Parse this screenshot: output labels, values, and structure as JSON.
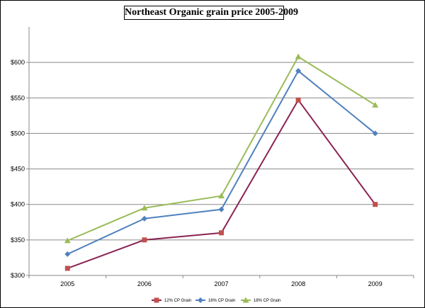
{
  "chart_data": {
    "type": "line",
    "title": "Northeast Organic grain price 2005-2009",
    "xlabel": "",
    "ylabel": "",
    "categories": [
      "2005",
      "2006",
      "2007",
      "2008",
      "2009"
    ],
    "ylim": [
      300,
      650
    ],
    "yticks": [
      300,
      350,
      400,
      450,
      500,
      550,
      600
    ],
    "ytick_labels": [
      "$300",
      "$350",
      "$400",
      "$450",
      "$500",
      "$550",
      "$600"
    ],
    "grid": true,
    "legend_position": "bottom",
    "series": [
      {
        "name": "12% CP Grain",
        "values": [
          310,
          350,
          360,
          547,
          400
        ],
        "line_color": "#8B2252",
        "marker_color": "#C0504D",
        "marker": "square"
      },
      {
        "name": "16% CP Grain",
        "values": [
          330,
          380,
          393,
          588,
          500
        ],
        "line_color": "#4F81BD",
        "marker_color": "#4F81BD",
        "marker": "diamond"
      },
      {
        "name": "18% CP Grain",
        "values": [
          349,
          395,
          412,
          608,
          540
        ],
        "line_color": "#9BBB59",
        "marker_color": "#9BBB59",
        "marker": "triangle"
      }
    ]
  }
}
